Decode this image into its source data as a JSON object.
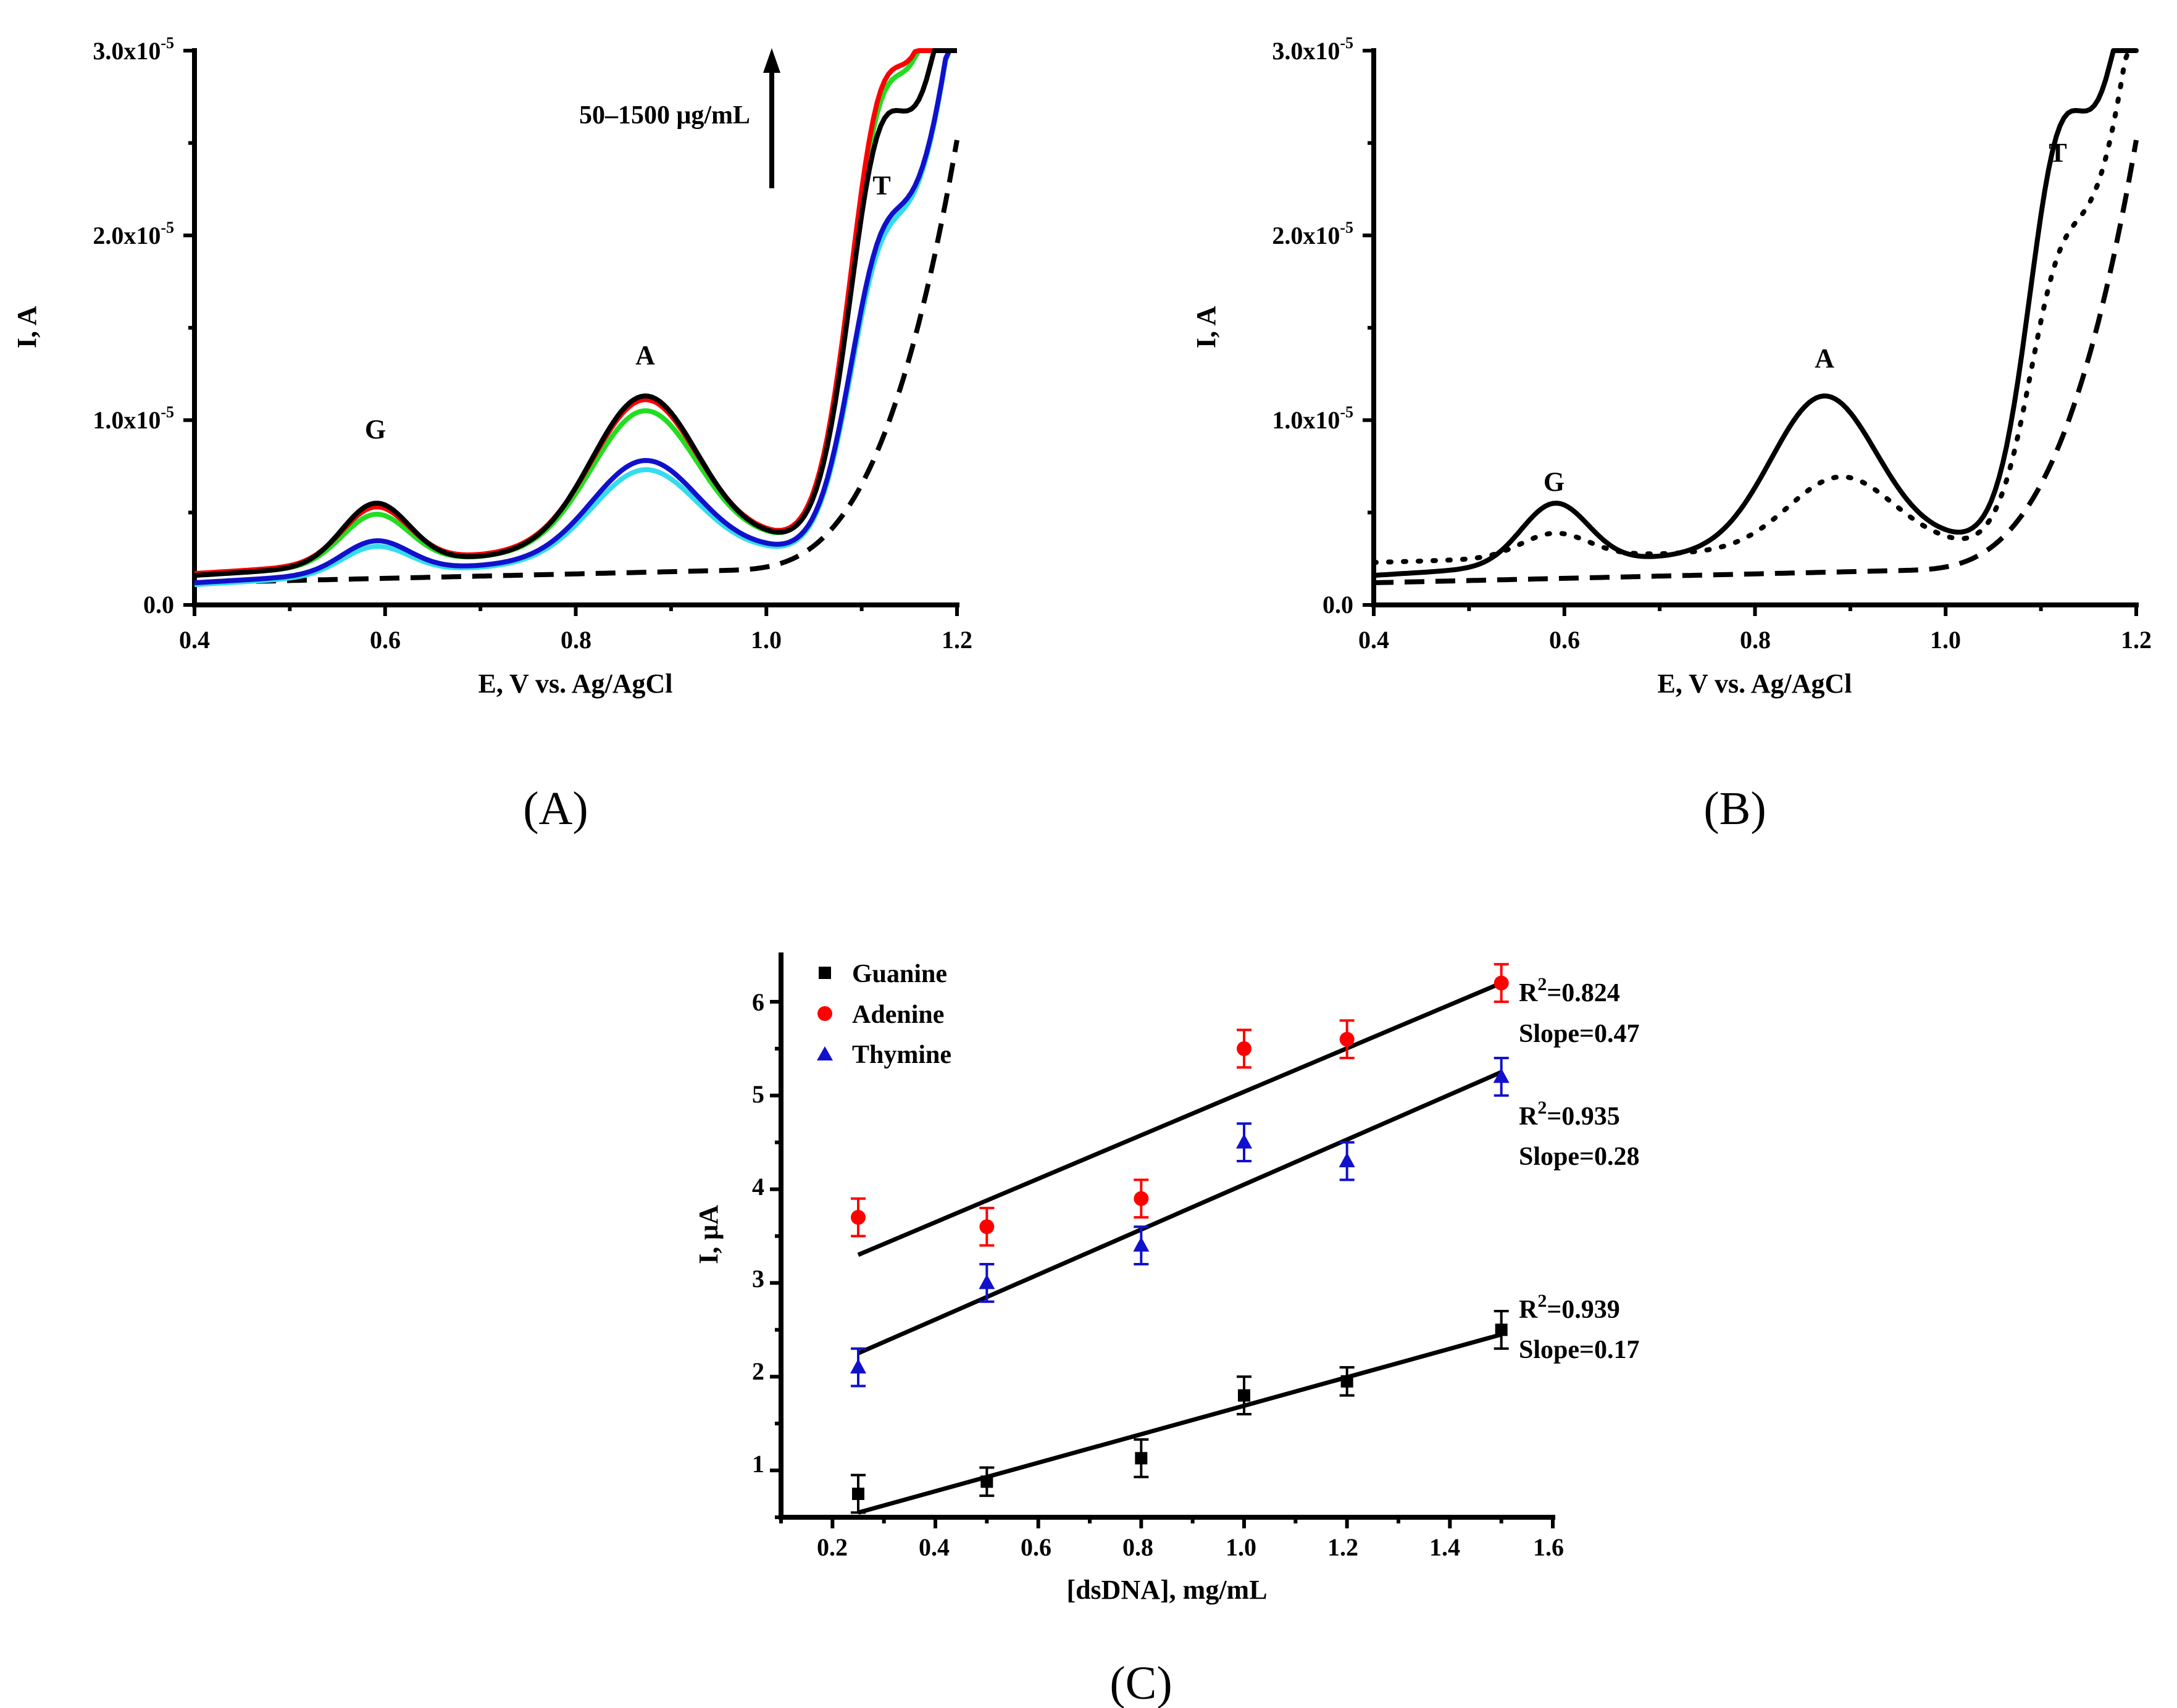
{
  "colors": {
    "black": "#000000",
    "red": "#ff0000",
    "green": "#22dd22",
    "blue": "#1111cc",
    "cyan": "#33ddee"
  },
  "chart_data": [
    {
      "id": "A",
      "type": "line",
      "caption": "(A)",
      "xlabel": "E, V vs. Ag/AgCl",
      "ylabel": "I, A",
      "xlim": [
        0.4,
        1.2
      ],
      "ylim": [
        0,
        3e-05
      ],
      "xticks": [
        "0.4",
        "0.6",
        "0.8",
        "1.0",
        "1.2"
      ],
      "yticks": [
        {
          "mant": "0.0",
          "exp": ""
        },
        {
          "mant": "1.0x10",
          "exp": "-5"
        },
        {
          "mant": "2.0x10",
          "exp": "-5"
        },
        {
          "mant": "3.0x10",
          "exp": "-5"
        }
      ],
      "peaks": [
        {
          "label": "G",
          "x": 0.59,
          "y": 5.3e-06
        },
        {
          "label": "A",
          "x": 0.875,
          "y": 1.18e-05
        },
        {
          "label": "T",
          "x": 1.12,
          "y": 2.32e-05
        }
      ],
      "arrow_label": "50–1500 μg/mL",
      "series": [
        {
          "name": "blank",
          "color": "#000000",
          "dash": true,
          "params": {
            "gH": 0,
            "aH": 0,
            "tH": 0,
            "tail": 0,
            "base0": 1.2e-06,
            "slope": 1.2e-06
          }
        },
        {
          "name": "cyan",
          "color": "#33ddee",
          "dash": false,
          "params": {
            "gH": 1.5e-06,
            "aH": 4.8e-06,
            "tH": 8.5e-06,
            "tail": 3e-05,
            "base0": 1.1e-06,
            "slope": 3e-06
          }
        },
        {
          "name": "blue",
          "color": "#1111cc",
          "dash": false,
          "params": {
            "gH": 1.7e-06,
            "aH": 5.2e-06,
            "tH": 8.9e-06,
            "tail": 3e-05,
            "base0": 1.2e-06,
            "slope": 3e-06
          }
        },
        {
          "name": "green",
          "color": "#22dd22",
          "dash": false,
          "params": {
            "gH": 2.7e-06,
            "aH": 7.4e-06,
            "tH": 1.32e-05,
            "tail": 3.9e-05,
            "base0": 1.6e-06,
            "slope": 3.2e-06
          }
        },
        {
          "name": "red",
          "color": "#ff0000",
          "dash": false,
          "params": {
            "gH": 3e-06,
            "aH": 7.9e-06,
            "tH": 1.37e-05,
            "tail": 3.9e-05,
            "base0": 1.7e-06,
            "slope": 3.2e-06
          }
        },
        {
          "name": "black",
          "color": "#000000",
          "dash": false,
          "params": {
            "gH": 3.3e-06,
            "aH": 8.2e-06,
            "tH": 1.32e-05,
            "tail": 3.4e-05,
            "base0": 1.6e-06,
            "slope": 3.2e-06
          }
        }
      ]
    },
    {
      "id": "B",
      "type": "line",
      "caption": "(B)",
      "xlabel": "E, V vs. Ag/AgCl",
      "ylabel": "I, A",
      "xlim": [
        0.4,
        1.2
      ],
      "ylim": [
        0,
        3e-05
      ],
      "xticks": [
        "0.4",
        "0.6",
        "0.8",
        "1.0",
        "1.2"
      ],
      "yticks": [
        {
          "mant": "0.0",
          "exp": ""
        },
        {
          "mant": "1.0x10",
          "exp": "-5"
        },
        {
          "mant": "2.0x10",
          "exp": "-5"
        },
        {
          "mant": "3.0x10",
          "exp": "-5"
        }
      ],
      "peaks": [
        {
          "label": "G",
          "x": 0.59,
          "y": 5.3e-06
        },
        {
          "label": "A",
          "x": 0.875,
          "y": 1.18e-05
        },
        {
          "label": "T",
          "x": 1.12,
          "y": 2.32e-05
        }
      ],
      "series": [
        {
          "name": "blank",
          "color": "#000000",
          "style": "dash",
          "params": {
            "gH": 0,
            "aH": 0,
            "tH": 0,
            "tail": 0,
            "base0": 1.2e-06,
            "slope": 1.2e-06
          }
        },
        {
          "name": "dotted",
          "color": "#000000",
          "style": "dot",
          "params": {
            "gH": 1.3e-06,
            "aH": 3.9e-06,
            "tH": 8e-06,
            "tail": 3e-05,
            "base0": 2.3e-06,
            "slope": 1.5e-06,
            "aX": 0.89
          }
        },
        {
          "name": "solid",
          "color": "#000000",
          "style": "solid",
          "params": {
            "gH": 3.3e-06,
            "aH": 8.2e-06,
            "tH": 1.32e-05,
            "tail": 3.4e-05,
            "base0": 1.6e-06,
            "slope": 3.2e-06
          }
        }
      ]
    },
    {
      "id": "C",
      "type": "scatter",
      "caption": "(C)",
      "xlabel": "[dsDNA], mg/mL",
      "ylabel": "I, μA",
      "xlim": [
        0.1,
        1.6
      ],
      "ylim": [
        0.5,
        6.5
      ],
      "xticks": [
        "0.2",
        "0.4",
        "0.6",
        "0.8",
        "1.0",
        "1.2",
        "1.4",
        "1.6"
      ],
      "yticks": [
        "1",
        "2",
        "3",
        "4",
        "5",
        "6"
      ],
      "series": [
        {
          "name": "Guanine",
          "marker": "square",
          "color": "#000000",
          "x": [
            0.25,
            0.5,
            0.8,
            1.0,
            1.2,
            1.5
          ],
          "y": [
            0.75,
            0.88,
            1.13,
            1.8,
            1.95,
            2.5
          ],
          "err": [
            0.2,
            0.15,
            0.2,
            0.2,
            0.15,
            0.2
          ],
          "fit": [
            [
              0.25,
              0.55
            ],
            [
              1.5,
              2.45
            ]
          ],
          "r2": "=0.939",
          "slope": "Slope=0.17"
        },
        {
          "name": "Adenine",
          "marker": "circle",
          "color": "#ff0000",
          "x": [
            0.25,
            0.5,
            0.8,
            1.0,
            1.2,
            1.5
          ],
          "y": [
            3.7,
            3.6,
            3.9,
            5.5,
            5.6,
            6.2
          ],
          "err": [
            0.2,
            0.2,
            0.2,
            0.2,
            0.2,
            0.2
          ],
          "fit": [
            [
              0.25,
              3.3
            ],
            [
              1.5,
              6.2
            ]
          ],
          "r2": "=0.824",
          "slope": "Slope=0.47"
        },
        {
          "name": "Thymine",
          "marker": "triangle",
          "color": "#1111cc",
          "x": [
            0.25,
            0.5,
            0.8,
            1.0,
            1.2,
            1.5
          ],
          "y": [
            2.1,
            3.0,
            3.4,
            4.5,
            4.3,
            5.2
          ],
          "err": [
            0.2,
            0.2,
            0.2,
            0.2,
            0.2,
            0.2
          ],
          "fit": [
            [
              0.25,
              2.25
            ],
            [
              1.5,
              5.25
            ]
          ],
          "r2": "=0.935",
          "slope": "Slope=0.28"
        }
      ],
      "r2_prefix": "R"
    }
  ]
}
